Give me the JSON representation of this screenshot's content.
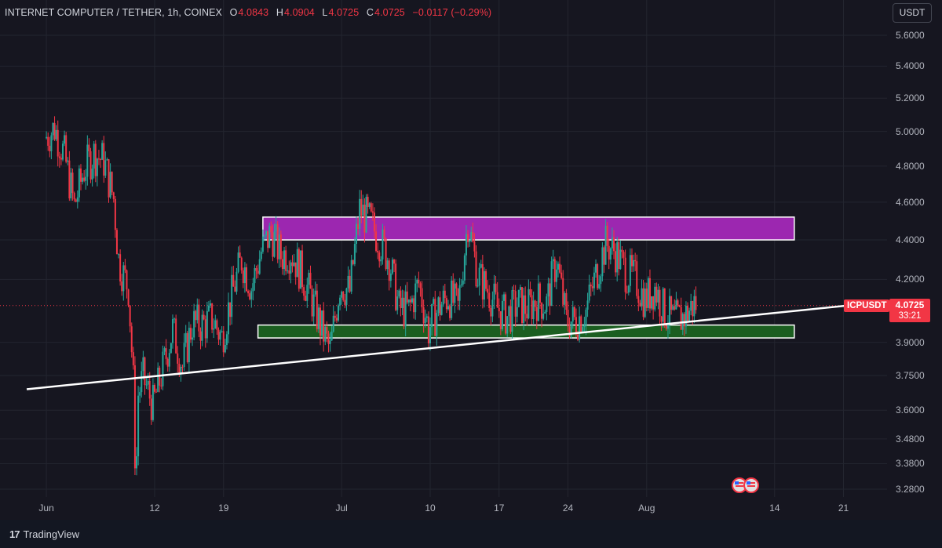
{
  "header": {
    "symbol_line": "INTERNET COMPUTER / TETHER, 1h, COINEX",
    "open_label": "O",
    "open": "4.0843",
    "high_label": "H",
    "high": "4.0904",
    "low_label": "L",
    "low": "4.0725",
    "close_label": "C",
    "close": "4.0725",
    "change": "−0.0117 (−0.29%)"
  },
  "currency_button": "USDT",
  "price_tag": {
    "symbol": "ICPUSDT",
    "price": "4.0725",
    "countdown": "33:21"
  },
  "brand": "TradingView",
  "colors": {
    "up": "#26a69a",
    "down": "#f23645",
    "resistance_zone": "#9c27b0",
    "support_zone": "#1b5e20",
    "trendline": "#ffffff"
  },
  "chart_data": {
    "type": "candlestick",
    "log_scale": true,
    "grid": true,
    "y_ticks": [
      "5.6000",
      "5.4000",
      "5.2000",
      "5.0000",
      "4.8000",
      "4.6000",
      "4.4000",
      "4.2000",
      "3.9000",
      "3.7500",
      "3.6000",
      "3.4800",
      "3.3800",
      "3.2800"
    ],
    "x_ticks": [
      "Jun",
      "12",
      "19",
      "Jul",
      "10",
      "17",
      "24",
      "Aug",
      "14",
      "21"
    ],
    "price_path": [
      [
        "2023-06-01",
        4.96
      ],
      [
        "2023-06-02",
        5.02
      ],
      [
        "2023-06-03",
        4.86
      ],
      [
        "2023-06-04",
        4.58
      ],
      [
        "2023-06-05",
        4.78
      ],
      [
        "2023-06-06",
        4.87
      ],
      [
        "2023-06-07",
        4.83
      ],
      [
        "2023-06-08",
        4.62
      ],
      [
        "2023-06-08T12",
        4.3
      ],
      [
        "2023-06-09",
        4.22
      ],
      [
        "2023-06-09T12",
        4.16
      ],
      [
        "2023-06-10",
        3.72
      ],
      [
        "2023-06-10T06",
        3.28
      ],
      [
        "2023-06-10T12",
        3.67
      ],
      [
        "2023-06-11",
        3.74
      ],
      [
        "2023-06-12",
        3.62
      ],
      [
        "2023-06-13",
        3.78
      ],
      [
        "2023-06-14",
        3.96
      ],
      [
        "2023-06-15",
        3.79
      ],
      [
        "2023-06-16",
        3.99
      ],
      [
        "2023-06-17",
        3.98
      ],
      [
        "2023-06-18",
        4.01
      ],
      [
        "2023-06-19",
        3.92
      ],
      [
        "2023-06-20",
        4.12
      ],
      [
        "2023-06-21",
        4.3
      ],
      [
        "2023-06-22",
        4.16
      ],
      [
        "2023-06-23",
        4.34
      ],
      [
        "2023-06-24",
        4.44
      ],
      [
        "2023-06-25",
        4.32
      ],
      [
        "2023-06-26",
        4.34
      ],
      [
        "2023-06-27",
        4.24
      ],
      [
        "2023-06-28",
        4.12
      ],
      [
        "2023-06-29",
        3.98
      ],
      [
        "2023-06-30",
        3.86
      ],
      [
        "2023-07-01",
        4.18
      ],
      [
        "2023-07-02",
        4.14
      ],
      [
        "2023-07-03",
        4.56
      ],
      [
        "2023-07-04",
        4.5
      ],
      [
        "2023-07-05",
        4.4
      ],
      [
        "2023-07-06",
        4.3
      ],
      [
        "2023-07-07",
        4.06
      ],
      [
        "2023-07-08",
        4.05
      ],
      [
        "2023-07-09",
        4.18
      ],
      [
        "2023-07-10",
        3.96
      ],
      [
        "2023-07-11",
        4.06
      ],
      [
        "2023-07-12",
        4.12
      ],
      [
        "2023-07-13",
        4.06
      ],
      [
        "2023-07-14",
        4.5
      ],
      [
        "2023-07-15",
        4.22
      ],
      [
        "2023-07-16",
        4.15
      ],
      [
        "2023-07-17",
        4.06
      ],
      [
        "2023-07-18",
        4.02
      ],
      [
        "2023-07-19",
        4.08
      ],
      [
        "2023-07-20",
        4.06
      ],
      [
        "2023-07-21",
        4.1
      ],
      [
        "2023-07-22",
        4.08
      ],
      [
        "2023-07-23",
        4.3
      ],
      [
        "2023-07-24",
        4.0
      ],
      [
        "2023-07-25",
        4.0
      ],
      [
        "2023-07-26",
        4.05
      ],
      [
        "2023-07-27",
        4.22
      ],
      [
        "2023-07-28",
        4.38
      ],
      [
        "2023-07-29",
        4.34
      ],
      [
        "2023-07-30",
        4.24
      ],
      [
        "2023-07-31",
        4.2
      ],
      [
        "2023-08-01",
        4.1
      ],
      [
        "2023-08-02",
        4.16
      ],
      [
        "2023-08-03",
        4.04
      ],
      [
        "2023-08-04",
        4.0
      ],
      [
        "2023-08-05",
        4.02
      ],
      [
        "2023-08-06",
        4.08
      ]
    ],
    "annotations": [
      {
        "type": "rectangle",
        "label": "resistance",
        "x_start": "2023-06-23",
        "x_end": "2023-08-16",
        "y_low": 4.4,
        "y_high": 4.52
      },
      {
        "type": "rectangle",
        "label": "support",
        "x_start": "2023-06-22T12",
        "x_end": "2023-08-16",
        "y_low": 3.92,
        "y_high": 3.98
      },
      {
        "type": "trendline",
        "x1": "2023-05-30",
        "y1": 3.69,
        "x2": "2023-08-25",
        "y2": 4.09
      }
    ],
    "last_price": 4.0725
  }
}
